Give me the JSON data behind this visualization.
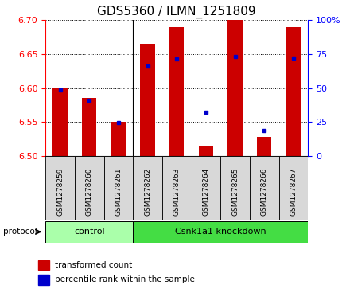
{
  "title": "GDS5360 / ILMN_1251809",
  "samples": [
    "GSM1278259",
    "GSM1278260",
    "GSM1278261",
    "GSM1278262",
    "GSM1278263",
    "GSM1278264",
    "GSM1278265",
    "GSM1278266",
    "GSM1278267"
  ],
  "bar_values": [
    6.601,
    6.586,
    6.55,
    6.665,
    6.69,
    6.515,
    6.7,
    6.528,
    6.69
  ],
  "percentile_values": [
    6.597,
    6.582,
    6.549,
    6.632,
    6.643,
    6.565,
    6.646,
    6.537,
    6.644
  ],
  "bar_color": "#cc0000",
  "percentile_color": "#0000cc",
  "ylim_left": [
    6.5,
    6.7
  ],
  "ylim_right": [
    0,
    100
  ],
  "yticks_left": [
    6.5,
    6.55,
    6.6,
    6.65,
    6.7
  ],
  "yticks_right": [
    0,
    25,
    50,
    75,
    100
  ],
  "control_samples": 3,
  "control_label": "control",
  "knockdown_label": "Csnk1a1 knockdown",
  "protocol_label": "protocol",
  "legend_bar_label": "transformed count",
  "legend_pct_label": "percentile rank within the sample",
  "bar_width": 0.5,
  "background_color": "#ffffff",
  "plot_bg": "#ffffff",
  "tick_label_fontsize": 8,
  "title_fontsize": 11,
  "ctrl_color": "#aaffaa",
  "kd_color": "#44dd44",
  "label_bg": "#d8d8d8"
}
